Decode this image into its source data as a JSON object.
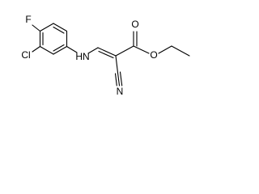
{
  "atoms": {
    "fluorine": "F",
    "chlorine": "Cl",
    "amine": "HN",
    "nitrile_nitrogen": "N",
    "carbonyl_oxygen": "O",
    "ester_oxygen": "O"
  }
}
